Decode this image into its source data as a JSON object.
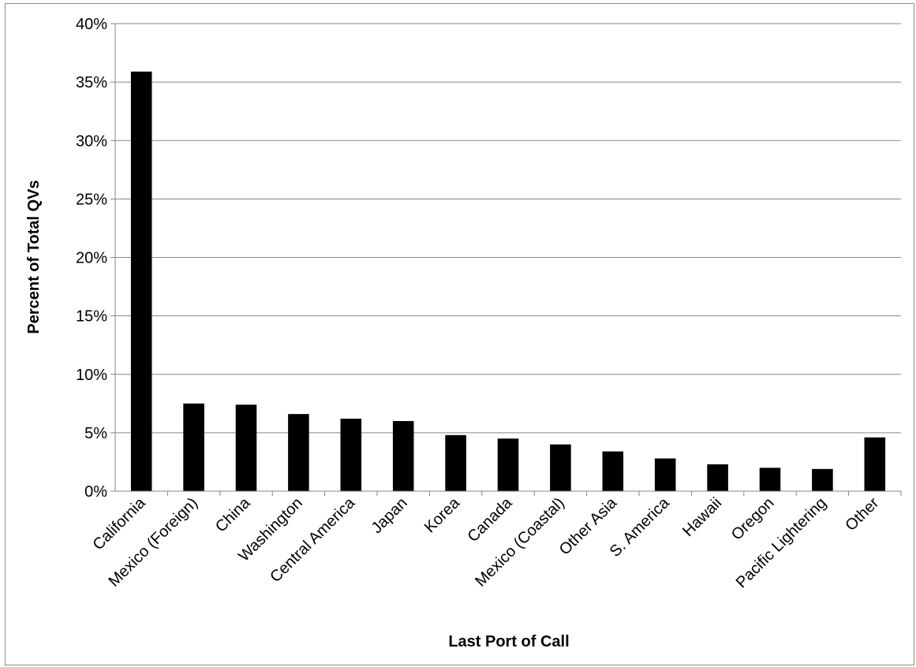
{
  "chart_data": {
    "type": "bar",
    "title": "",
    "xlabel": "Last Port of Call",
    "ylabel": "Percent of Total QVs",
    "ylim": [
      0,
      40
    ],
    "y_ticks": [
      "0%",
      "5%",
      "10%",
      "15%",
      "20%",
      "25%",
      "30%",
      "35%",
      "40%"
    ],
    "grid": true,
    "legend": "none",
    "bar_color": "#000000",
    "categories": [
      "California",
      "Mexico (Foreign)",
      "China",
      "Washington",
      "Central America",
      "Japan",
      "Korea",
      "Canada",
      "Mexico (Coastal)",
      "Other Asia",
      "S. America",
      "Hawaii",
      "Oregon",
      "Pacific Lightering",
      "Other"
    ],
    "values": [
      35.9,
      7.5,
      7.4,
      6.6,
      6.2,
      6.0,
      4.8,
      4.5,
      4.0,
      3.4,
      2.8,
      2.3,
      2.0,
      1.9,
      4.6
    ]
  }
}
